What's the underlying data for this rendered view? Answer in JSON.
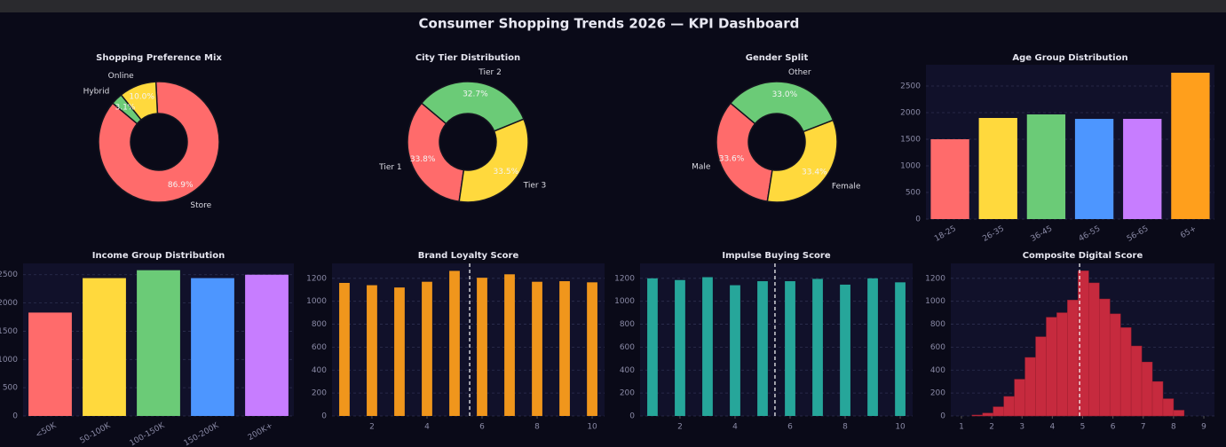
{
  "title": "Consumer Shopping Trends 2026 — KPI Dashboard",
  "chart_data": [
    {
      "type": "pie",
      "title": "Shopping Preference Mix",
      "categories": [
        "Store",
        "Online",
        "Hybrid"
      ],
      "values": [
        86.9,
        10.0,
        3.1
      ],
      "value_labels": [
        "86.9%",
        "10.0%",
        "3.1%"
      ],
      "colors": [
        "#ff6b6b",
        "#ffd93d",
        "#6bcb77"
      ]
    },
    {
      "type": "pie",
      "title": "City Tier Distribution",
      "categories": [
        "Tier 1",
        "Tier 3",
        "Tier 2"
      ],
      "values": [
        33.8,
        33.5,
        32.7
      ],
      "value_labels": [
        "33.8%",
        "33.5%",
        "32.7%"
      ],
      "colors": [
        "#ff6b6b",
        "#ffd93d",
        "#6bcb77"
      ]
    },
    {
      "type": "pie",
      "title": "Gender Split",
      "categories": [
        "Male",
        "Female",
        "Other"
      ],
      "values": [
        33.6,
        33.4,
        33.0
      ],
      "value_labels": [
        "33.6%",
        "33.4%",
        "33.0%"
      ],
      "colors": [
        "#ff6b6b",
        "#ffd93d",
        "#6bcb77"
      ]
    },
    {
      "type": "bar",
      "title": "Age Group Distribution",
      "categories": [
        "18-25",
        "26-35",
        "36-45",
        "46-55",
        "56-65",
        "65+"
      ],
      "values": [
        1500,
        1900,
        1967,
        1883,
        1883,
        2750
      ],
      "colors": [
        "#ff6b6b",
        "#ffd93d",
        "#6bcb77",
        "#4d96ff",
        "#c77dff",
        "#ff9f1c"
      ],
      "ylim": [
        0,
        2900
      ],
      "yticks": [
        0,
        500,
        1000,
        1500,
        2000,
        2500
      ],
      "grid": true
    },
    {
      "type": "bar",
      "title": "Income Group Distribution",
      "categories": [
        "<50K",
        "50-100K",
        "100-150K",
        "150-200K",
        "200K+"
      ],
      "values": [
        1830,
        2440,
        2580,
        2440,
        2500
      ],
      "colors": [
        "#ff6b6b",
        "#ffd93d",
        "#6bcb77",
        "#4d96ff",
        "#c77dff"
      ],
      "ylim": [
        0,
        2700
      ],
      "yticks": [
        0,
        500,
        1000,
        1500,
        2000,
        2500
      ],
      "grid": true
    },
    {
      "type": "column",
      "title": "Brand Loyalty Score",
      "x": [
        1,
        2,
        3,
        4,
        5,
        6,
        7,
        8,
        9,
        10
      ],
      "values": [
        1160,
        1140,
        1120,
        1170,
        1265,
        1205,
        1235,
        1170,
        1175,
        1165
      ],
      "color": "#f0961c",
      "mean": 5.55,
      "xlim": [
        0.55,
        10.45
      ],
      "xticks": [
        2,
        4,
        6,
        8,
        10
      ],
      "ylim": [
        0,
        1330
      ],
      "yticks": [
        0,
        200,
        400,
        600,
        800,
        1000,
        1200
      ],
      "grid": true
    },
    {
      "type": "column",
      "title": "Impulse Buying Score",
      "x": [
        1,
        2,
        3,
        4,
        5,
        6,
        7,
        8,
        9,
        10
      ],
      "values": [
        1200,
        1185,
        1210,
        1140,
        1175,
        1175,
        1195,
        1145,
        1200,
        1165
      ],
      "color": "#26a69a",
      "mean": 5.45,
      "xlim": [
        0.55,
        10.45
      ],
      "xticks": [
        2,
        4,
        6,
        8,
        10
      ],
      "ylim": [
        0,
        1330
      ],
      "yticks": [
        0,
        200,
        400,
        600,
        800,
        1000,
        1200
      ],
      "grid": true
    },
    {
      "type": "histogram",
      "title": "Composite Digital Score",
      "bins": [
        1.35,
        1.7,
        2.05,
        2.4,
        2.75,
        3.1,
        3.45,
        3.8,
        4.15,
        4.5,
        4.85,
        5.2,
        5.55,
        5.9,
        6.25,
        6.6,
        6.95,
        7.3,
        7.65,
        8.0,
        8.35
      ],
      "values": [
        8,
        25,
        80,
        170,
        320,
        510,
        690,
        860,
        900,
        1010,
        1265,
        1160,
        1020,
        890,
        770,
        610,
        470,
        300,
        150,
        50
      ],
      "color": "#c62a3e",
      "mean": 4.9,
      "xlim": [
        0.65,
        9.35
      ],
      "xticks": [
        1,
        2,
        3,
        4,
        5,
        6,
        7,
        8,
        9
      ],
      "ylim": [
        0,
        1330
      ],
      "yticks": [
        0,
        200,
        400,
        600,
        800,
        1000,
        1200
      ],
      "grid": true
    }
  ]
}
